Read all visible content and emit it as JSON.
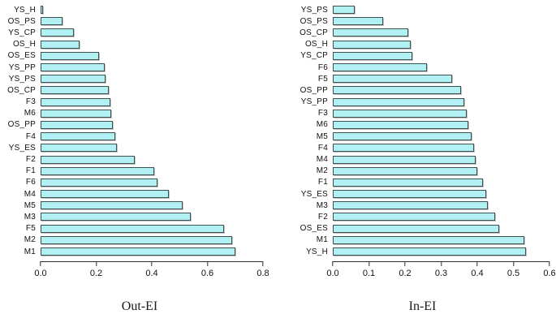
{
  "figure": {
    "background": "#ffffff",
    "bar_fill": "#b2f1f3",
    "bar_border": "#3f4f4f"
  },
  "chart_data": [
    {
      "type": "bar",
      "orientation": "horizontal",
      "title": "Out-EI",
      "xlabel": "Out-EI",
      "categories": [
        "YS_H",
        "OS_PS",
        "YS_CP",
        "OS_H",
        "OS_ES",
        "YS_PP",
        "YS_PS",
        "OS_CP",
        "F3",
        "M6",
        "OS_PP",
        "F4",
        "YS_ES",
        "F2",
        "F1",
        "F6",
        "M4",
        "M5",
        "M3",
        "F5",
        "M2",
        "M1"
      ],
      "values": [
        0.01,
        0.08,
        0.12,
        0.14,
        0.21,
        0.23,
        0.235,
        0.245,
        0.25,
        0.255,
        0.26,
        0.27,
        0.275,
        0.34,
        0.41,
        0.42,
        0.46,
        0.51,
        0.54,
        0.66,
        0.69,
        0.7
      ],
      "xlim": [
        0,
        0.8
      ],
      "xticks": [
        "0.0",
        "0.2",
        "0.4",
        "0.6",
        "0.8"
      ],
      "grid": "off",
      "legend": "none",
      "bar_fill": "#b2f1f3",
      "bar_border": "#3f4f4f"
    },
    {
      "type": "bar",
      "orientation": "horizontal",
      "title": "In-EI",
      "xlabel": "In-EI",
      "categories": [
        "YS_PS",
        "OS_PS",
        "OS_CP",
        "OS_H",
        "YS_CP",
        "F6",
        "F5",
        "OS_PP",
        "YS_PP",
        "F3",
        "M6",
        "M5",
        "F4",
        "M4",
        "M2",
        "F1",
        "YS_ES",
        "M3",
        "F2",
        "OS_ES",
        "M1",
        "YS_H"
      ],
      "values": [
        0.06,
        0.14,
        0.21,
        0.215,
        0.22,
        0.26,
        0.33,
        0.355,
        0.365,
        0.37,
        0.375,
        0.385,
        0.39,
        0.395,
        0.4,
        0.415,
        0.425,
        0.43,
        0.45,
        0.46,
        0.53,
        0.535
      ],
      "xlim": [
        0,
        0.6
      ],
      "xticks": [
        "0.0",
        "0.1",
        "0.2",
        "0.3",
        "0.4",
        "0.5",
        "0.6"
      ],
      "grid": "off",
      "legend": "none",
      "bar_fill": "#b2f1f3",
      "bar_border": "#3f4f4f"
    }
  ]
}
